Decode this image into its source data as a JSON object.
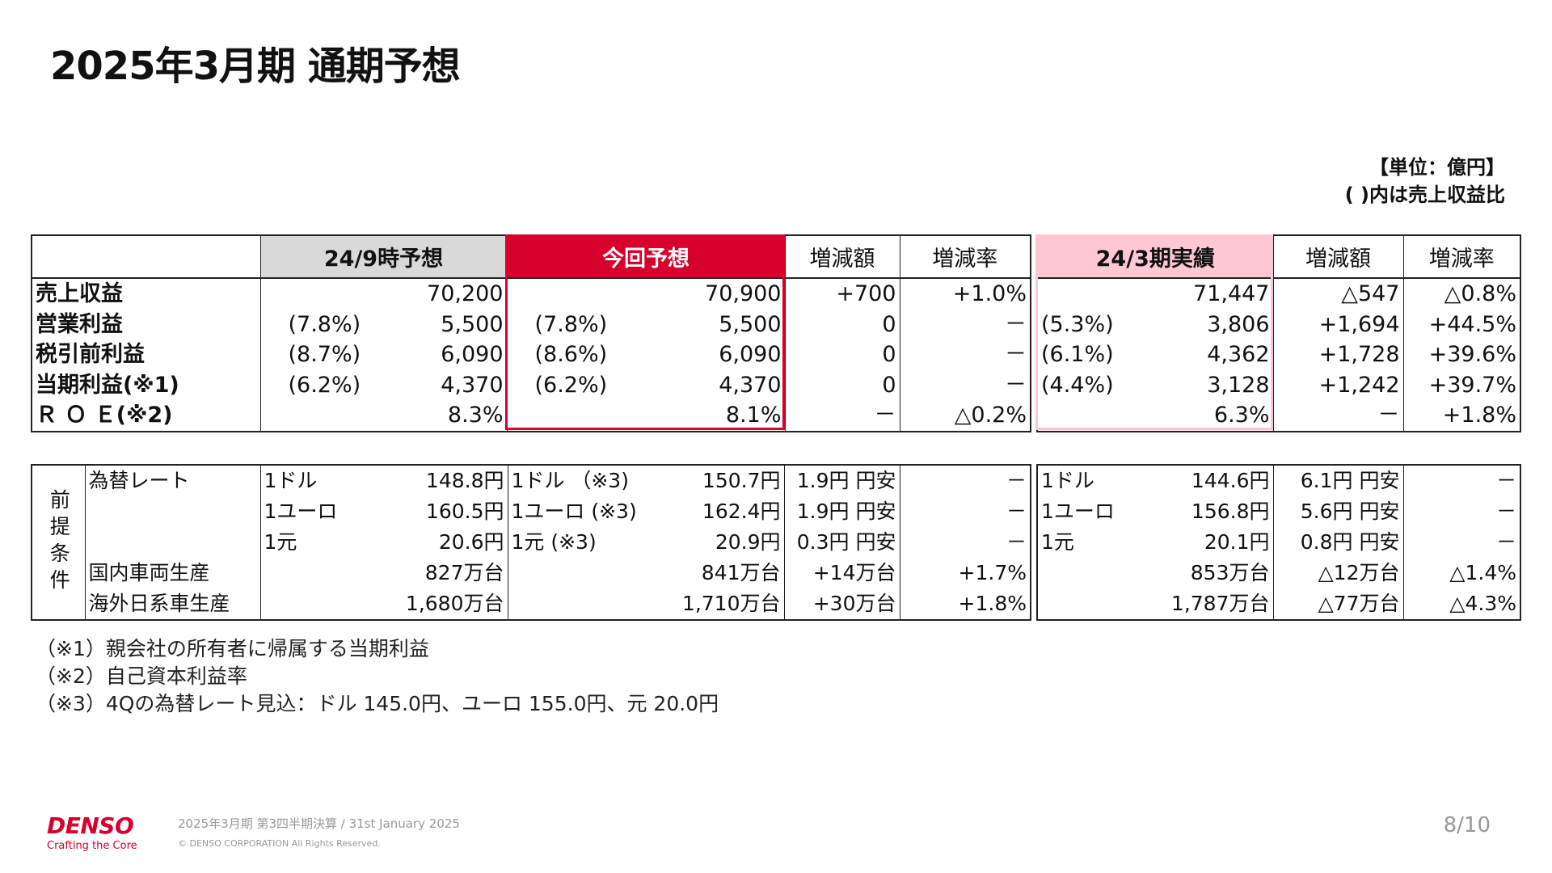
{
  "title": "2025年3月期 通期予想",
  "unit": {
    "line1": "【単位：億円】",
    "line2": "( )内は売上収益比"
  },
  "colors": {
    "accent": "#D7002C",
    "gray_header": "#D9D9D9",
    "pink_header": "#FFC7D4"
  },
  "table1": {
    "headers": [
      "",
      "24/9時予想",
      "今回予想",
      "増減額",
      "増減率",
      "24/3期実績",
      "増減額",
      "増減率"
    ],
    "rows": [
      {
        "label": "売上収益",
        "prev_ratio": "",
        "prev": "70,200",
        "cur_ratio": "",
        "cur": "70,900",
        "diff": "+700",
        "rate": "+1.0%",
        "act_ratio": "",
        "act": "71,447",
        "diff2": "△547",
        "rate2": "△0.8%"
      },
      {
        "label": "営業利益",
        "prev_ratio": "(7.8%)",
        "prev": "5,500",
        "cur_ratio": "(7.8%)",
        "cur": "5,500",
        "diff": "0",
        "rate": "－",
        "act_ratio": "(5.3%)",
        "act": "3,806",
        "diff2": "+1,694",
        "rate2": "+44.5%"
      },
      {
        "label": "税引前利益",
        "prev_ratio": "(8.7%)",
        "prev": "6,090",
        "cur_ratio": "(8.6%)",
        "cur": "6,090",
        "diff": "0",
        "rate": "－",
        "act_ratio": "(6.1%)",
        "act": "4,362",
        "diff2": "+1,728",
        "rate2": "+39.6%"
      },
      {
        "label": "当期利益(※1)",
        "prev_ratio": "(6.2%)",
        "prev": "4,370",
        "cur_ratio": "(6.2%)",
        "cur": "4,370",
        "diff": "0",
        "rate": "－",
        "act_ratio": "(4.4%)",
        "act": "3,128",
        "diff2": "+1,242",
        "rate2": "+39.7%"
      },
      {
        "label": "Ｒ Ｏ Ｅ(※2)",
        "prev_ratio": "",
        "prev": "8.3%",
        "cur_ratio": "",
        "cur": "8.1%",
        "diff": "－",
        "rate": "△0.2%",
        "act_ratio": "",
        "act": "6.3%",
        "diff2": "－",
        "rate2": "+1.8%"
      }
    ]
  },
  "table2": {
    "group_label": "前提条件",
    "rows": [
      {
        "label": "為替レート",
        "prev_unit": "1ドル",
        "prev": "148.8円",
        "cur_unit": "1ドル （※3)",
        "cur": "150.7円",
        "diff": "1.9円 円安",
        "rate": "－",
        "act_unit": "1ドル",
        "act": "144.6円",
        "diff2": "6.1円 円安",
        "rate2": "－"
      },
      {
        "label": "",
        "prev_unit": "1ユーロ",
        "prev": "160.5円",
        "cur_unit": "1ユーロ (※3)",
        "cur": "162.4円",
        "diff": "1.9円 円安",
        "rate": "－",
        "act_unit": "1ユーロ",
        "act": "156.8円",
        "diff2": "5.6円 円安",
        "rate2": "－"
      },
      {
        "label": "",
        "prev_unit": "1元",
        "prev": "20.6円",
        "cur_unit": "1元 (※3)",
        "cur": "20.9円",
        "diff": "0.3円 円安",
        "rate": "－",
        "act_unit": "1元",
        "act": "20.1円",
        "diff2": "0.8円 円安",
        "rate2": "－"
      },
      {
        "label": "国内車両生産",
        "prev_unit": "",
        "prev": "827万台",
        "cur_unit": "",
        "cur": "841万台",
        "diff": "+14万台",
        "rate": "+1.7%",
        "act_unit": "",
        "act": "853万台",
        "diff2": "△12万台",
        "rate2": "△1.4%"
      },
      {
        "label": "海外日系車生産",
        "prev_unit": "",
        "prev": "1,680万台",
        "cur_unit": "",
        "cur": "1,710万台",
        "diff": "+30万台",
        "rate": "+1.8%",
        "act_unit": "",
        "act": "1,787万台",
        "diff2": "△77万台",
        "rate2": "△4.3%"
      }
    ]
  },
  "notes": [
    "（※1）親会社の所有者に帰属する当期利益",
    "（※2）自己資本利益率",
    "（※3）4Qの為替レート見込：ドル 145.0円、ユーロ 155.0円、元 20.0円"
  ],
  "footer": {
    "logo": "DENSO",
    "tagline": "Crafting the Core",
    "subtitle": "2025年3月期 第3四半期決算 / 31st January 2025",
    "copyright": "© DENSO CORPORATION All Rights Reserved.",
    "page": "8/10"
  }
}
